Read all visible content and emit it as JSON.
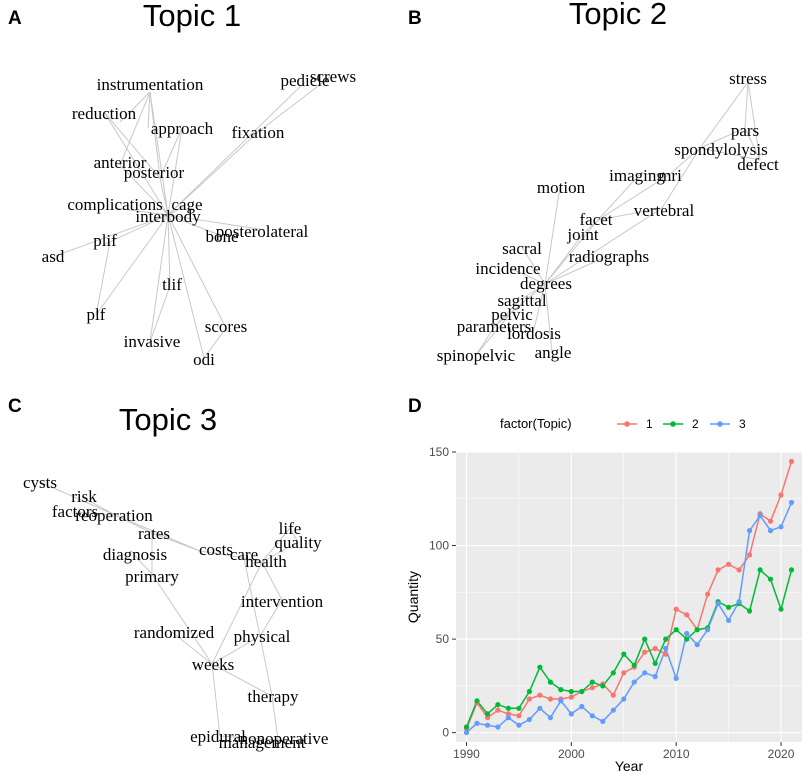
{
  "panels": {
    "A": {
      "letter": "A",
      "title": "Topic 1",
      "words": [
        "instrumentation",
        "reduction",
        "approach",
        "fixation",
        "pedicle",
        "screws",
        "anterior",
        "posterior",
        "complications",
        "cage",
        "interbody",
        "posterolateral",
        "bone",
        "plif",
        "asd",
        "tlif",
        "plf",
        "invasive",
        "scores",
        "odi"
      ]
    },
    "B": {
      "letter": "B",
      "title": "Topic 2",
      "words": [
        "stress",
        "pars",
        "spondylolysis",
        "defect",
        "mri",
        "imaging",
        "motion",
        "vertebral",
        "facet",
        "joint",
        "sacral",
        "incidence",
        "radiographs",
        "degrees",
        "sagittal",
        "pelvic",
        "parameters",
        "lordosis",
        "spinopelvic",
        "angle"
      ]
    },
    "C": {
      "letter": "C",
      "title": "Topic 3",
      "words": [
        "cysts",
        "risk",
        "factors",
        "reoperation",
        "rates",
        "diagnosis",
        "costs",
        "care",
        "health",
        "life",
        "quality",
        "primary",
        "intervention",
        "randomized",
        "physical",
        "weeks",
        "therapy",
        "epidural",
        "management",
        "nonoperative"
      ]
    },
    "D": {
      "letter": "D"
    }
  },
  "chart_data": {
    "type": "line",
    "xlabel": "Year",
    "ylabel": "Quantity",
    "legend_title": "factor(Topic)",
    "legend_position": "top",
    "xlim": [
      1989,
      2022
    ],
    "ylim": [
      -5,
      150
    ],
    "x_ticks": [
      1990,
      2000,
      2010,
      2020
    ],
    "y_ticks": [
      0,
      50,
      100,
      150
    ],
    "x": [
      1990,
      1991,
      1992,
      1993,
      1994,
      1995,
      1996,
      1997,
      1998,
      1999,
      2000,
      2001,
      2002,
      2003,
      2004,
      2005,
      2006,
      2007,
      2008,
      2009,
      2010,
      2011,
      2012,
      2013,
      2014,
      2015,
      2016,
      2017,
      2018,
      2019,
      2020,
      2021
    ],
    "series": [
      {
        "name": "1",
        "color": "#F8766D",
        "values": [
          2,
          16,
          8,
          12,
          10,
          9,
          18,
          20,
          18,
          18,
          19,
          22,
          24,
          26,
          20,
          32,
          35,
          43,
          45,
          42,
          66,
          63,
          55,
          74,
          87,
          90,
          87,
          95,
          117,
          113,
          127,
          145
        ]
      },
      {
        "name": "2",
        "color": "#00BA38",
        "values": [
          3,
          17,
          10,
          15,
          13,
          13,
          22,
          35,
          27,
          23,
          22,
          22,
          27,
          25,
          32,
          42,
          36,
          50,
          37,
          50,
          55,
          50,
          55,
          56,
          70,
          67,
          69,
          65,
          87,
          82,
          66,
          87
        ]
      },
      {
        "name": "3",
        "color": "#619CFF",
        "values": [
          0,
          5,
          4,
          3,
          8,
          4,
          7,
          13,
          8,
          17,
          10,
          14,
          9,
          6,
          12,
          18,
          27,
          32,
          30,
          45,
          29,
          53,
          47,
          55,
          69,
          60,
          70,
          108,
          116,
          108,
          110,
          123
        ]
      }
    ]
  }
}
